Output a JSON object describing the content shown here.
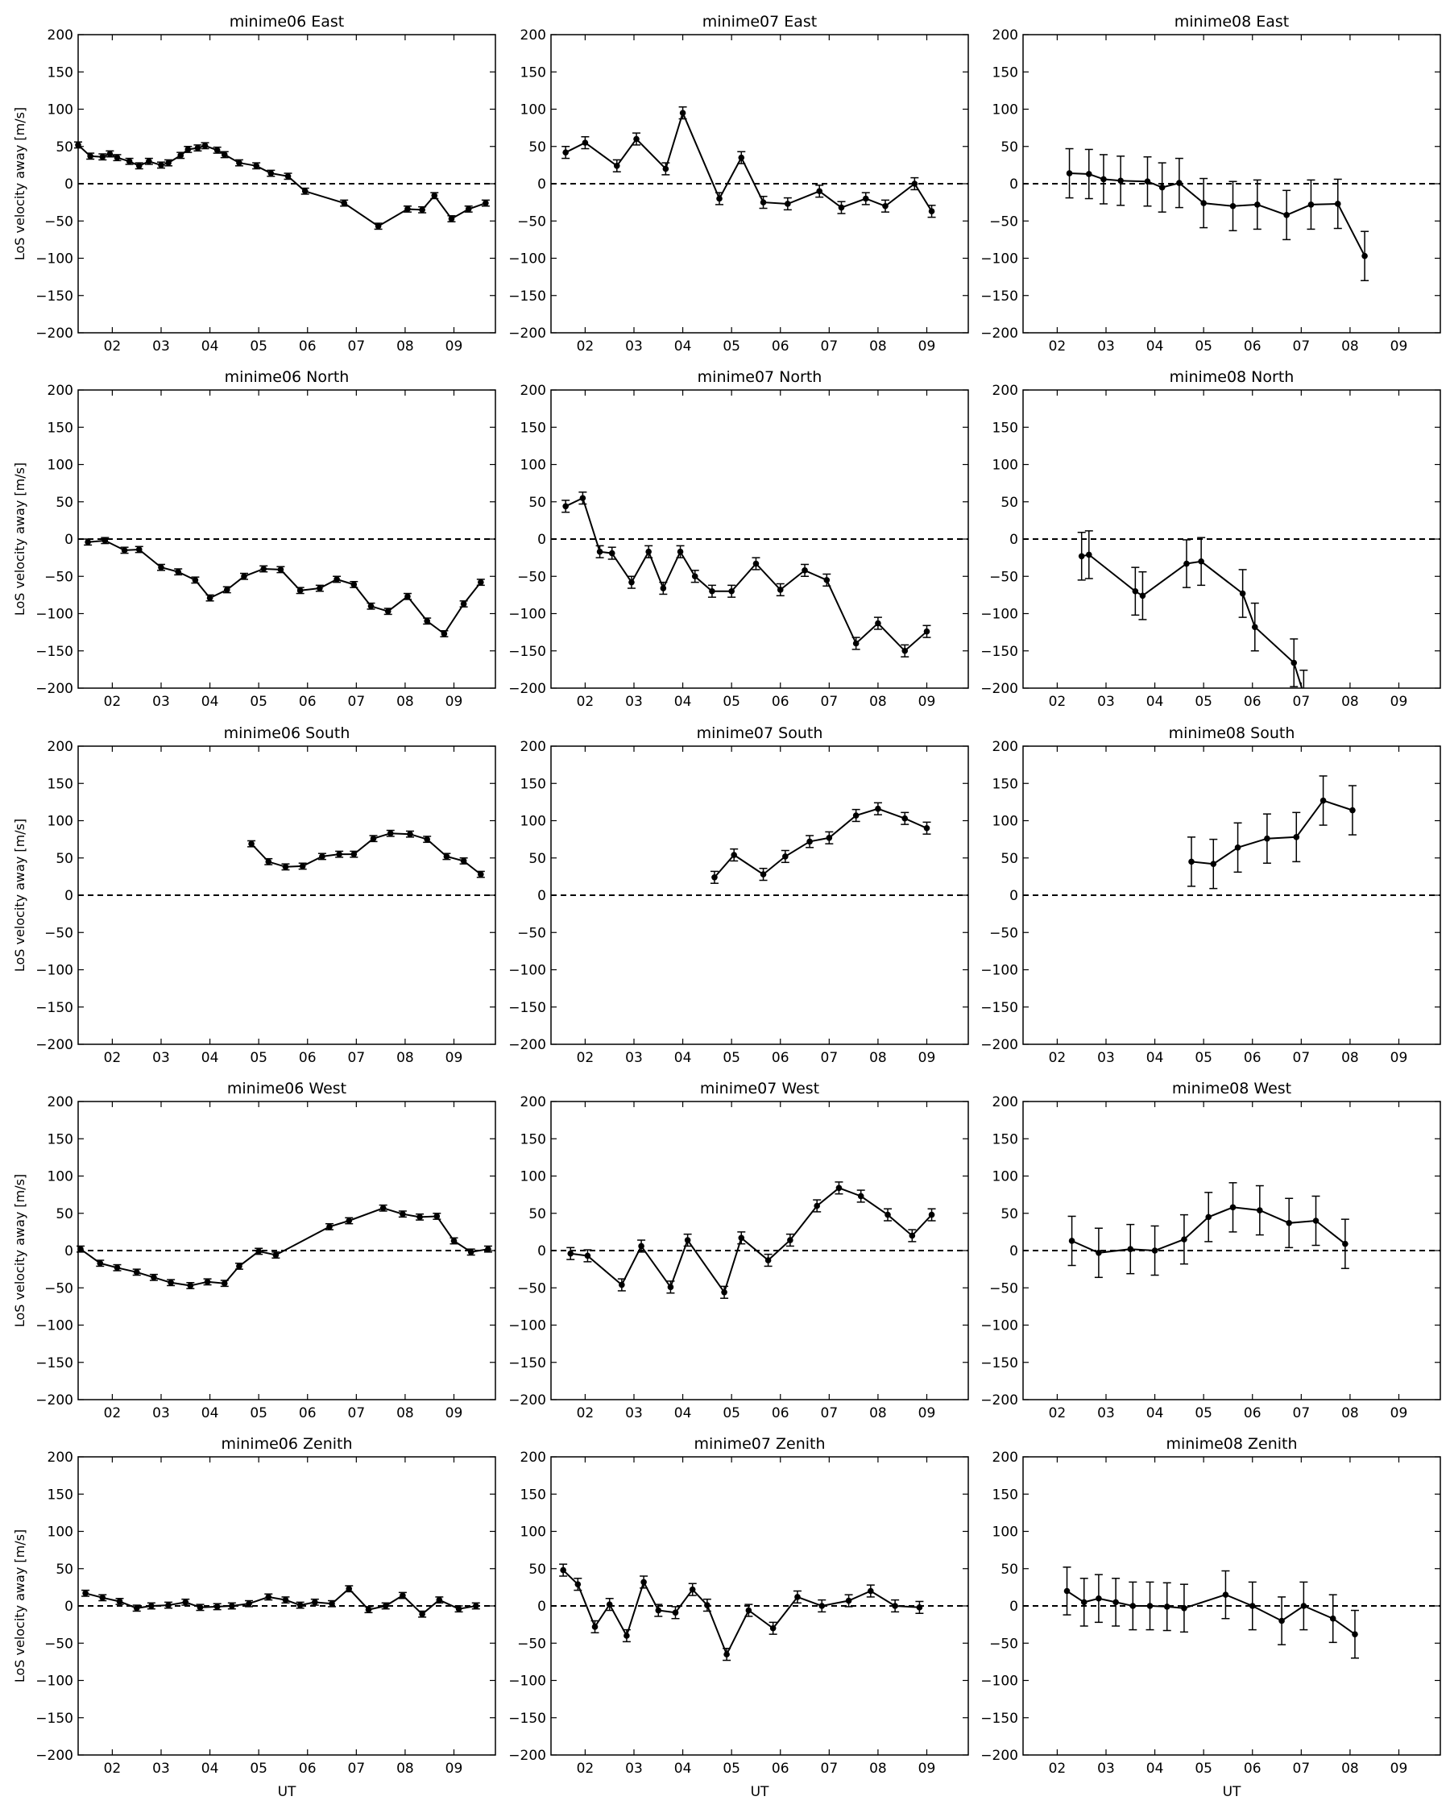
{
  "figure": {
    "ylabel": "LoS velocity away [m/s]",
    "xlabel": "UT",
    "yticks": [
      200,
      150,
      100,
      50,
      0,
      -50,
      -100,
      -150,
      -200
    ],
    "ytick_labels": [
      "200",
      "150",
      "100",
      "50",
      "0",
      "−50",
      "−100",
      "−150",
      "−200"
    ],
    "xticks": [
      2,
      3,
      4,
      5,
      6,
      7,
      8,
      9
    ],
    "xtick_labels": [
      "02",
      "03",
      "04",
      "05",
      "06",
      "07",
      "08",
      "09"
    ]
  },
  "chart_data": [
    {
      "title": "minime06 East",
      "type": "line",
      "xlim": [
        1.3,
        9.85
      ],
      "ylim": [
        -200,
        200
      ],
      "x": [
        1.3,
        1.55,
        1.8,
        1.95,
        2.1,
        2.35,
        2.55,
        2.75,
        3.0,
        3.15,
        3.4,
        3.55,
        3.75,
        3.9,
        4.15,
        4.3,
        4.6,
        4.95,
        5.25,
        5.6,
        5.95,
        6.75,
        7.45,
        8.05,
        8.35,
        8.6,
        8.95,
        9.3,
        9.65
      ],
      "y": [
        52,
        37,
        36,
        40,
        35,
        30,
        24,
        30,
        25,
        28,
        38,
        46,
        48,
        51,
        45,
        39,
        28,
        24,
        14,
        10,
        -10,
        -26,
        -57,
        -34,
        -35,
        -16,
        -47,
        -34,
        -26
      ],
      "err": [
        4,
        4,
        4,
        4,
        4,
        4,
        4,
        4,
        4,
        4,
        4,
        4,
        4,
        4,
        4,
        4,
        4,
        4,
        4,
        4,
        4,
        4,
        4,
        4,
        4,
        4,
        4,
        4,
        4
      ]
    },
    {
      "title": "minime07 East",
      "type": "line",
      "xlim": [
        1.3,
        9.85
      ],
      "ylim": [
        -200,
        200
      ],
      "x": [
        1.6,
        2.0,
        2.65,
        3.05,
        3.65,
        4.0,
        4.75,
        5.2,
        5.65,
        6.15,
        6.8,
        7.25,
        7.75,
        8.15,
        8.75,
        9.1
      ],
      "y": [
        42,
        55,
        24,
        60,
        20,
        95,
        -20,
        35,
        -25,
        -27,
        -10,
        -32,
        -20,
        -30,
        0,
        -37
      ],
      "err": [
        8,
        8,
        8,
        8,
        8,
        8,
        8,
        8,
        8,
        8,
        8,
        8,
        8,
        8,
        8,
        8
      ]
    },
    {
      "title": "minime08 East",
      "type": "line",
      "xlim": [
        1.3,
        9.85
      ],
      "ylim": [
        -200,
        200
      ],
      "x": [
        2.25,
        2.65,
        2.95,
        3.3,
        3.85,
        4.15,
        4.5,
        5.0,
        5.6,
        6.1,
        6.7,
        7.2,
        7.75,
        8.3
      ],
      "y": [
        14,
        13,
        6,
        4,
        3,
        -5,
        1,
        -26,
        -30,
        -28,
        -42,
        -28,
        -27,
        -97
      ],
      "err": [
        33,
        33,
        33,
        33,
        33,
        33,
        33,
        33,
        33,
        33,
        33,
        33,
        33,
        33
      ]
    },
    {
      "title": "minime06 North",
      "type": "line",
      "xlim": [
        1.3,
        9.85
      ],
      "ylim": [
        -200,
        200
      ],
      "x": [
        1.5,
        1.85,
        2.25,
        2.55,
        3.0,
        3.35,
        3.7,
        4.0,
        4.35,
        4.7,
        5.1,
        5.45,
        5.85,
        6.25,
        6.6,
        6.95,
        7.3,
        7.65,
        8.05,
        8.45,
        8.8,
        9.2,
        9.55
      ],
      "y": [
        -4,
        -2,
        -15,
        -14,
        -38,
        -44,
        -55,
        -79,
        -68,
        -50,
        -40,
        -41,
        -69,
        -66,
        -54,
        -61,
        -90,
        -97,
        -77,
        -110,
        -127,
        -87,
        -58
      ],
      "err": [
        4,
        4,
        4,
        4,
        4,
        4,
        4,
        4,
        4,
        4,
        4,
        4,
        4,
        4,
        4,
        4,
        4,
        4,
        4,
        4,
        4,
        4,
        4
      ]
    },
    {
      "title": "minime07 North",
      "type": "line",
      "xlim": [
        1.3,
        9.85
      ],
      "ylim": [
        -200,
        200
      ],
      "x": [
        1.6,
        1.95,
        2.3,
        2.55,
        2.95,
        3.3,
        3.6,
        3.95,
        4.25,
        4.6,
        5.0,
        5.5,
        6.0,
        6.5,
        6.95,
        7.55,
        8.0,
        8.55,
        9.0
      ],
      "y": [
        44,
        55,
        -17,
        -19,
        -58,
        -17,
        -66,
        -17,
        -50,
        -70,
        -70,
        -33,
        -68,
        -42,
        -55,
        -140,
        -113,
        -150,
        -124
      ],
      "err": [
        8,
        8,
        8,
        8,
        8,
        8,
        8,
        8,
        8,
        8,
        8,
        8,
        8,
        8,
        8,
        8,
        8,
        8,
        8
      ]
    },
    {
      "title": "minime08 North",
      "type": "line",
      "xlim": [
        1.3,
        9.85
      ],
      "ylim": [
        -200,
        200
      ],
      "x": [
        2.5,
        2.65,
        3.6,
        3.75,
        4.65,
        4.95,
        5.8,
        6.05,
        6.85,
        7.05
      ],
      "y": [
        -23,
        -21,
        -70,
        -76,
        -33,
        -30,
        -73,
        -118,
        -166,
        -208
      ],
      "err": [
        32,
        32,
        32,
        32,
        32,
        32,
        32,
        32,
        32,
        32
      ]
    },
    {
      "title": "minime06 South",
      "type": "line",
      "xlim": [
        1.3,
        9.85
      ],
      "ylim": [
        -200,
        200
      ],
      "x": [
        4.85,
        5.2,
        5.55,
        5.9,
        6.3,
        6.65,
        6.95,
        7.35,
        7.7,
        8.1,
        8.45,
        8.85,
        9.2,
        9.55
      ],
      "y": [
        69,
        45,
        38,
        39,
        52,
        55,
        55,
        76,
        83,
        82,
        75,
        52,
        46,
        28
      ],
      "err": [
        4,
        4,
        4,
        4,
        4,
        4,
        4,
        4,
        4,
        4,
        4,
        4,
        4,
        4
      ]
    },
    {
      "title": "minime07 South",
      "type": "line",
      "xlim": [
        1.3,
        9.85
      ],
      "ylim": [
        -200,
        200
      ],
      "x": [
        4.65,
        5.05,
        5.65,
        6.1,
        6.6,
        7.0,
        7.55,
        8.0,
        8.55,
        9.0
      ],
      "y": [
        24,
        54,
        28,
        52,
        72,
        77,
        107,
        116,
        103,
        90
      ],
      "err": [
        8,
        8,
        8,
        8,
        8,
        8,
        8,
        8,
        8,
        8
      ]
    },
    {
      "title": "minime08 South",
      "type": "line",
      "xlim": [
        1.3,
        9.85
      ],
      "ylim": [
        -200,
        200
      ],
      "x": [
        4.75,
        5.2,
        5.7,
        6.3,
        6.9,
        7.45,
        8.05
      ],
      "y": [
        45,
        42,
        64,
        76,
        78,
        127,
        114
      ],
      "err": [
        33,
        33,
        33,
        33,
        33,
        33,
        33
      ]
    },
    {
      "title": "minime06 West",
      "type": "line",
      "xlim": [
        1.3,
        9.85
      ],
      "ylim": [
        -200,
        200
      ],
      "x": [
        1.35,
        1.75,
        2.1,
        2.5,
        2.85,
        3.2,
        3.6,
        3.95,
        4.3,
        4.6,
        5.0,
        5.35,
        6.45,
        6.85,
        7.55,
        7.95,
        8.3,
        8.65,
        9.0,
        9.35,
        9.7
      ],
      "y": [
        2,
        -17,
        -23,
        -29,
        -36,
        -43,
        -47,
        -42,
        -44,
        -21,
        -1,
        -6,
        32,
        40,
        57,
        49,
        45,
        46,
        13,
        -2,
        2
      ],
      "err": [
        4,
        4,
        4,
        4,
        4,
        4,
        4,
        4,
        4,
        4,
        4,
        4,
        4,
        4,
        4,
        4,
        4,
        4,
        4,
        4,
        4
      ]
    },
    {
      "title": "minime07 West",
      "type": "line",
      "xlim": [
        1.3,
        9.85
      ],
      "ylim": [
        -200,
        200
      ],
      "x": [
        1.7,
        2.05,
        2.75,
        3.15,
        3.75,
        4.1,
        4.85,
        5.2,
        5.75,
        6.2,
        6.75,
        7.2,
        7.65,
        8.2,
        8.7,
        9.1
      ],
      "y": [
        -4,
        -7,
        -46,
        6,
        -49,
        14,
        -56,
        17,
        -13,
        14,
        60,
        84,
        73,
        48,
        20,
        48
      ],
      "err": [
        8,
        8,
        8,
        8,
        8,
        8,
        8,
        8,
        8,
        8,
        8,
        8,
        8,
        8,
        8,
        8
      ]
    },
    {
      "title": "minime08 West",
      "type": "line",
      "xlim": [
        1.3,
        9.85
      ],
      "ylim": [
        -200,
        200
      ],
      "x": [
        2.3,
        2.85,
        3.5,
        4.0,
        4.6,
        5.1,
        5.6,
        6.15,
        6.75,
        7.3,
        7.9
      ],
      "y": [
        13,
        -3,
        2,
        0,
        15,
        45,
        58,
        54,
        37,
        40,
        9
      ],
      "err": [
        33,
        33,
        33,
        33,
        33,
        33,
        33,
        33,
        33,
        33,
        33
      ]
    },
    {
      "title": "minime06 Zenith",
      "type": "line",
      "xlim": [
        1.3,
        9.85
      ],
      "ylim": [
        -200,
        200
      ],
      "x": [
        1.45,
        1.8,
        2.15,
        2.5,
        2.8,
        3.15,
        3.5,
        3.8,
        4.15,
        4.45,
        4.8,
        5.2,
        5.55,
        5.85,
        6.15,
        6.5,
        6.85,
        7.25,
        7.6,
        7.95,
        8.35,
        8.7,
        9.1,
        9.45
      ],
      "y": [
        17,
        11,
        6,
        -3,
        0,
        1,
        5,
        -2,
        -1,
        0,
        3,
        12,
        8,
        1,
        5,
        3,
        23,
        -5,
        0,
        14,
        -11,
        8,
        -4,
        0
      ],
      "err": [
        4,
        4,
        4,
        4,
        4,
        4,
        4,
        4,
        4,
        4,
        4,
        4,
        4,
        4,
        4,
        4,
        4,
        4,
        4,
        4,
        4,
        4,
        4,
        4
      ]
    },
    {
      "title": "minime07 Zenith",
      "type": "line",
      "xlim": [
        1.3,
        9.85
      ],
      "ylim": [
        -200,
        200
      ],
      "x": [
        1.55,
        1.85,
        2.2,
        2.5,
        2.85,
        3.2,
        3.5,
        3.85,
        4.2,
        4.5,
        4.9,
        5.35,
        5.85,
        6.35,
        6.85,
        7.4,
        7.85,
        8.35,
        8.85
      ],
      "y": [
        48,
        29,
        -28,
        2,
        -40,
        32,
        -6,
        -9,
        22,
        1,
        -65,
        -6,
        -30,
        12,
        0,
        7,
        20,
        0,
        -2
      ],
      "err": [
        8,
        8,
        8,
        8,
        8,
        8,
        8,
        8,
        8,
        8,
        8,
        8,
        8,
        8,
        8,
        8,
        8,
        8,
        8
      ]
    },
    {
      "title": "minime08 Zenith",
      "type": "line",
      "xlim": [
        1.3,
        9.85
      ],
      "ylim": [
        -200,
        200
      ],
      "x": [
        2.2,
        2.55,
        2.85,
        3.2,
        3.55,
        3.9,
        4.25,
        4.6,
        5.45,
        6.0,
        6.6,
        7.05,
        7.65,
        8.1
      ],
      "y": [
        20,
        5,
        10,
        5,
        0,
        0,
        -1,
        -3,
        15,
        0,
        -20,
        0,
        -17,
        -38
      ],
      "err": [
        32,
        32,
        32,
        32,
        32,
        32,
        32,
        32,
        32,
        32,
        32,
        32,
        32,
        32
      ]
    }
  ]
}
